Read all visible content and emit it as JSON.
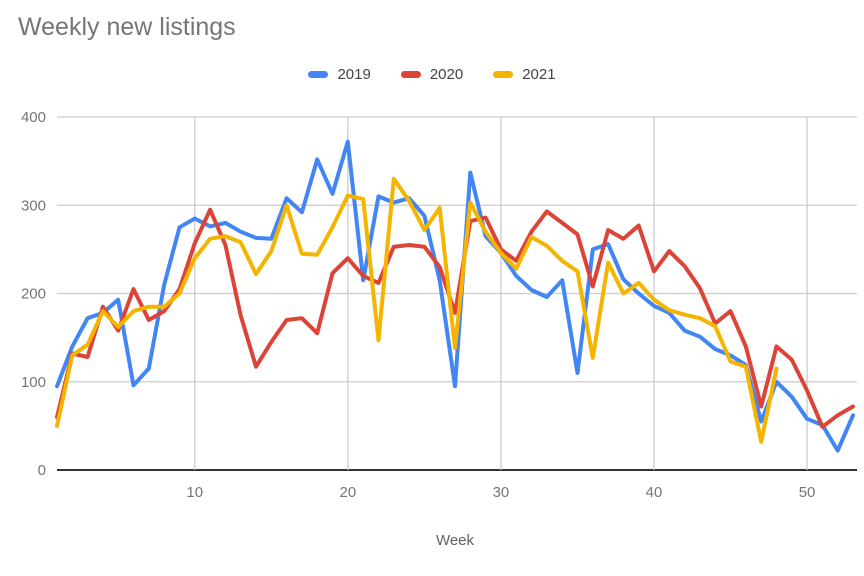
{
  "title": "Weekly new listings",
  "legend": {
    "items": [
      {
        "label": "2019",
        "color": "#4285F4"
      },
      {
        "label": "2020",
        "color": "#DB4437"
      },
      {
        "label": "2021",
        "color": "#F4B400"
      }
    ]
  },
  "chart_data": {
    "type": "line",
    "title": "Weekly new listings",
    "xlabel": "Week",
    "ylabel": "",
    "xlim": [
      1,
      53
    ],
    "ylim": [
      0,
      400
    ],
    "x_ticks": [
      10,
      20,
      30,
      40,
      50
    ],
    "y_ticks": [
      0,
      100,
      200,
      300,
      400
    ],
    "grid": true,
    "legend_position": "top",
    "grid_color": "#cccccc",
    "baseline_color": "#333333",
    "label_color": "#757575",
    "axis_title_color": "#616161",
    "series": [
      {
        "name": "2019",
        "color": "#4285F4",
        "x_start": 1,
        "values": [
          95,
          140,
          172,
          178,
          193,
          96,
          115,
          210,
          275,
          285,
          276,
          280,
          270,
          263,
          262,
          308,
          292,
          352,
          313,
          372,
          215,
          310,
          303,
          308,
          288,
          215,
          95,
          337,
          265,
          246,
          220,
          204,
          196,
          215,
          110,
          250,
          256,
          216,
          200,
          186,
          178,
          158,
          151,
          137,
          130,
          119,
          55,
          100,
          83,
          58,
          51,
          22,
          62
        ]
      },
      {
        "name": "2020",
        "color": "#DB4437",
        "x_start": 1,
        "values": [
          60,
          132,
          128,
          185,
          158,
          205,
          170,
          180,
          205,
          257,
          295,
          255,
          175,
          117,
          145,
          170,
          172,
          155,
          223,
          240,
          220,
          212,
          253,
          255,
          253,
          230,
          178,
          282,
          286,
          250,
          237,
          270,
          293,
          280,
          267,
          208,
          272,
          262,
          277,
          225,
          248,
          231,
          206,
          166,
          180,
          140,
          72,
          140,
          125,
          90,
          49,
          62,
          72
        ]
      },
      {
        "name": "2021",
        "color": "#F4B400",
        "x_start": 1,
        "values": [
          50,
          130,
          142,
          180,
          162,
          180,
          185,
          185,
          200,
          240,
          262,
          265,
          258,
          222,
          248,
          300,
          245,
          244,
          275,
          311,
          307,
          147,
          330,
          305,
          272,
          297,
          138,
          303,
          270,
          246,
          228,
          264,
          254,
          237,
          225,
          127,
          235,
          200,
          212,
          193,
          181,
          176,
          172,
          163,
          123,
          117,
          32,
          115
        ]
      }
    ]
  }
}
